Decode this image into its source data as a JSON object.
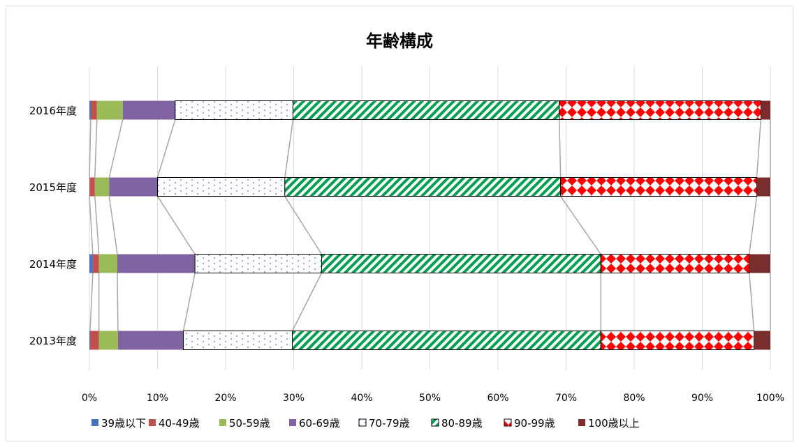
{
  "chart_data": {
    "type": "bar",
    "subtype": "stacked-100-horizontal",
    "title": "年齢構成",
    "xlabel": "",
    "ylabel": "",
    "xlim": [
      0,
      100
    ],
    "x_ticks": [
      "0%",
      "10%",
      "20%",
      "30%",
      "40%",
      "50%",
      "60%",
      "70%",
      "80%",
      "90%",
      "100%"
    ],
    "categories": [
      "2016年度",
      "2015年度",
      "2014年度",
      "2013年度"
    ],
    "grid": true,
    "series_lines": true,
    "legend_position": "bottom",
    "series": [
      {
        "name": "39歳以下",
        "color": "#4472c4",
        "pattern": "solid",
        "values": [
          0.2,
          0.0,
          0.5,
          0.1
        ]
      },
      {
        "name": "40-49歳",
        "color": "#c0504d",
        "pattern": "solid",
        "values": [
          0.9,
          0.8,
          0.9,
          1.3
        ]
      },
      {
        "name": "50-59歳",
        "color": "#9bbb59",
        "pattern": "solid",
        "values": [
          3.8,
          2.1,
          2.7,
          2.8
        ]
      },
      {
        "name": "60-69歳",
        "color": "#8064a2",
        "pattern": "solid",
        "values": [
          7.7,
          7.1,
          11.4,
          9.6
        ]
      },
      {
        "name": "70-79歳",
        "color": "#ffffff",
        "pattern": "dots",
        "values": [
          17.3,
          18.7,
          18.6,
          16.0
        ]
      },
      {
        "name": "80-89歳",
        "color": "#00a050",
        "pattern": "diagonal",
        "values": [
          39.1,
          40.5,
          41.0,
          45.3
        ]
      },
      {
        "name": "90-99歳",
        "color": "#ff0000",
        "pattern": "diamonds",
        "values": [
          29.6,
          28.8,
          21.8,
          22.5
        ]
      },
      {
        "name": "100歳以上",
        "color": "#7b2c2c",
        "pattern": "solid",
        "values": [
          1.4,
          2.0,
          3.1,
          2.4
        ]
      }
    ]
  }
}
